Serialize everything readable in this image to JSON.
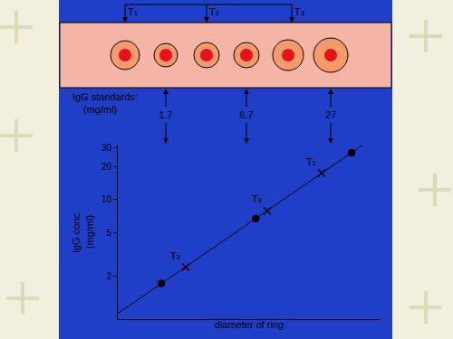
{
  "diagram": {
    "top_labels": [
      "T₁",
      "T₂",
      "T₃"
    ],
    "standards_label": [
      "IgG standards:",
      "(mg/ml)"
    ],
    "standards": [
      1.7,
      6.7,
      27
    ]
  },
  "chart_data": {
    "type": "scatter",
    "x_label": "diameter of ring",
    "y_label": [
      "IgG conc.",
      "(mg/ml)"
    ],
    "log": "y",
    "xlim": [
      0,
      100
    ],
    "xticks": [],
    "ylim": [
      0.8,
      32
    ],
    "yticks": [
      2,
      5,
      10,
      20,
      30
    ],
    "tick_labels": "y",
    "grid": false,
    "series": [
      {
        "type": "line",
        "color": "#000000",
        "line_style": "solid",
        "x": [
          0,
          93
        ],
        "values": [
          0.9,
          31.5
        ]
      },
      {
        "type": "scatter",
        "marker": "circle",
        "color": "#000000",
        "x": [
          16.6,
          52.5,
          89
        ],
        "values": [
          1.7,
          6.7,
          27
        ]
      },
      {
        "type": "scatter",
        "marker": "x",
        "color": "#000000",
        "x": [
          25.9,
          56.9,
          77.6
        ],
        "values": [
          2.4,
          7.9,
          17.5
        ],
        "point_labels": [
          "T₂",
          "T₃",
          "T₁"
        ]
      }
    ]
  }
}
